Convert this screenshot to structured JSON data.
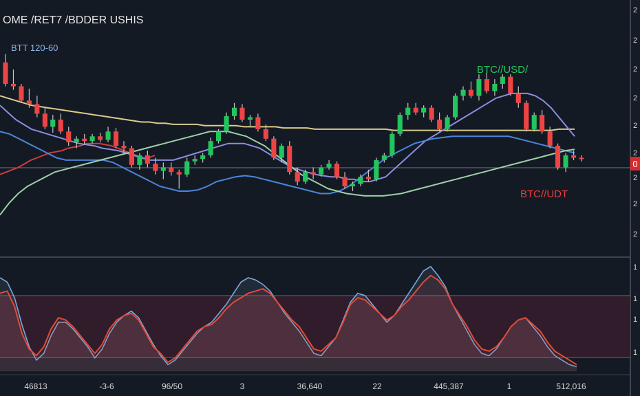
{
  "header": {
    "title": "OME /RET7 /BDDER USHIS",
    "subtitle": "BTT 120-60"
  },
  "annotations": {
    "btc_usd": "BTC//USD/",
    "btc_udt": "BTC//UDT"
  },
  "price_tag": "0",
  "colors": {
    "background": "#141a24",
    "bull": "#22c55e",
    "bear": "#ef4444",
    "ma_yellow": "#d8cc8a",
    "ma_red": "#d33a3a",
    "ma_blue": "#4a86d8",
    "ma_lavender": "#8a8ee0",
    "ma_green": "#9ed0a8",
    "osc_red": "#e04a3a",
    "osc_blue": "#7aa8d8",
    "axis_text": "#d6d6d6"
  },
  "x_axis_labels": [
    "46813",
    "-3-6",
    "96/50",
    "3",
    "36,640",
    "22",
    "445,387",
    "1",
    "512,016"
  ],
  "y_axis_ticks": [
    "2",
    "2",
    "2",
    "2",
    "2",
    "2",
    "2",
    "2",
    "2",
    "2",
    "2",
    "2"
  ],
  "lower_axis_ticks": [
    "1",
    "1",
    "1",
    "1"
  ],
  "chart_data": {
    "type": "candlestick",
    "candles": [
      {
        "o": 138,
        "h": 145,
        "l": 118,
        "c": 120
      },
      {
        "o": 120,
        "h": 132,
        "l": 115,
        "c": 118
      },
      {
        "o": 118,
        "h": 120,
        "l": 104,
        "c": 106
      },
      {
        "o": 106,
        "h": 116,
        "l": 100,
        "c": 103
      },
      {
        "o": 103,
        "h": 110,
        "l": 92,
        "c": 95
      },
      {
        "o": 95,
        "h": 100,
        "l": 82,
        "c": 84
      },
      {
        "o": 84,
        "h": 94,
        "l": 79,
        "c": 90
      },
      {
        "o": 90,
        "h": 95,
        "l": 78,
        "c": 80
      },
      {
        "o": 80,
        "h": 84,
        "l": 68,
        "c": 71
      },
      {
        "o": 71,
        "h": 76,
        "l": 66,
        "c": 74
      },
      {
        "o": 74,
        "h": 78,
        "l": 69,
        "c": 72
      },
      {
        "o": 72,
        "h": 78,
        "l": 70,
        "c": 76
      },
      {
        "o": 76,
        "h": 79,
        "l": 71,
        "c": 73
      },
      {
        "o": 73,
        "h": 84,
        "l": 71,
        "c": 80
      },
      {
        "o": 80,
        "h": 83,
        "l": 66,
        "c": 68
      },
      {
        "o": 68,
        "h": 72,
        "l": 62,
        "c": 66
      },
      {
        "o": 66,
        "h": 68,
        "l": 50,
        "c": 52
      },
      {
        "o": 52,
        "h": 62,
        "l": 48,
        "c": 60
      },
      {
        "o": 60,
        "h": 64,
        "l": 50,
        "c": 53
      },
      {
        "o": 53,
        "h": 58,
        "l": 44,
        "c": 47
      },
      {
        "o": 47,
        "h": 54,
        "l": 40,
        "c": 50
      },
      {
        "o": 50,
        "h": 54,
        "l": 43,
        "c": 46
      },
      {
        "o": 46,
        "h": 48,
        "l": 32,
        "c": 44
      },
      {
        "o": 44,
        "h": 58,
        "l": 42,
        "c": 55
      },
      {
        "o": 55,
        "h": 60,
        "l": 52,
        "c": 57
      },
      {
        "o": 57,
        "h": 62,
        "l": 54,
        "c": 60
      },
      {
        "o": 60,
        "h": 75,
        "l": 58,
        "c": 72
      },
      {
        "o": 72,
        "h": 82,
        "l": 70,
        "c": 80
      },
      {
        "o": 80,
        "h": 96,
        "l": 78,
        "c": 93
      },
      {
        "o": 93,
        "h": 104,
        "l": 90,
        "c": 100
      },
      {
        "o": 100,
        "h": 103,
        "l": 88,
        "c": 90
      },
      {
        "o": 90,
        "h": 94,
        "l": 84,
        "c": 92
      },
      {
        "o": 92,
        "h": 95,
        "l": 80,
        "c": 82
      },
      {
        "o": 82,
        "h": 86,
        "l": 72,
        "c": 74
      },
      {
        "o": 74,
        "h": 76,
        "l": 56,
        "c": 58
      },
      {
        "o": 58,
        "h": 70,
        "l": 54,
        "c": 68
      },
      {
        "o": 68,
        "h": 72,
        "l": 44,
        "c": 46
      },
      {
        "o": 46,
        "h": 50,
        "l": 35,
        "c": 38
      },
      {
        "o": 38,
        "h": 48,
        "l": 36,
        "c": 46
      },
      {
        "o": 46,
        "h": 50,
        "l": 40,
        "c": 44
      },
      {
        "o": 44,
        "h": 52,
        "l": 42,
        "c": 50
      },
      {
        "o": 50,
        "h": 56,
        "l": 48,
        "c": 53
      },
      {
        "o": 53,
        "h": 55,
        "l": 40,
        "c": 42
      },
      {
        "o": 42,
        "h": 46,
        "l": 32,
        "c": 34
      },
      {
        "o": 34,
        "h": 38,
        "l": 30,
        "c": 36
      },
      {
        "o": 36,
        "h": 44,
        "l": 34,
        "c": 42
      },
      {
        "o": 42,
        "h": 48,
        "l": 38,
        "c": 40
      },
      {
        "o": 40,
        "h": 58,
        "l": 38,
        "c": 56
      },
      {
        "o": 56,
        "h": 62,
        "l": 54,
        "c": 60
      },
      {
        "o": 60,
        "h": 80,
        "l": 58,
        "c": 78
      },
      {
        "o": 78,
        "h": 96,
        "l": 76,
        "c": 94
      },
      {
        "o": 94,
        "h": 104,
        "l": 90,
        "c": 100
      },
      {
        "o": 100,
        "h": 104,
        "l": 94,
        "c": 96
      },
      {
        "o": 96,
        "h": 102,
        "l": 92,
        "c": 100
      },
      {
        "o": 100,
        "h": 102,
        "l": 88,
        "c": 90
      },
      {
        "o": 90,
        "h": 96,
        "l": 80,
        "c": 82
      },
      {
        "o": 82,
        "h": 94,
        "l": 80,
        "c": 92
      },
      {
        "o": 92,
        "h": 112,
        "l": 90,
        "c": 110
      },
      {
        "o": 110,
        "h": 118,
        "l": 106,
        "c": 115
      },
      {
        "o": 115,
        "h": 122,
        "l": 108,
        "c": 110
      },
      {
        "o": 110,
        "h": 128,
        "l": 106,
        "c": 124
      },
      {
        "o": 124,
        "h": 130,
        "l": 112,
        "c": 114
      },
      {
        "o": 114,
        "h": 124,
        "l": 110,
        "c": 120
      },
      {
        "o": 120,
        "h": 128,
        "l": 116,
        "c": 126
      },
      {
        "o": 126,
        "h": 128,
        "l": 110,
        "c": 112
      },
      {
        "o": 112,
        "h": 118,
        "l": 100,
        "c": 104
      },
      {
        "o": 104,
        "h": 106,
        "l": 80,
        "c": 82
      },
      {
        "o": 82,
        "h": 96,
        "l": 80,
        "c": 94
      },
      {
        "o": 94,
        "h": 98,
        "l": 78,
        "c": 80
      },
      {
        "o": 80,
        "h": 84,
        "l": 66,
        "c": 68
      },
      {
        "o": 68,
        "h": 70,
        "l": 48,
        "c": 50
      },
      {
        "o": 50,
        "h": 62,
        "l": 46,
        "c": 60
      },
      {
        "o": 60,
        "h": 64,
        "l": 56,
        "c": 58
      },
      {
        "o": 58,
        "h": 60,
        "l": 55,
        "c": 57
      }
    ],
    "moving_averages": [
      {
        "color": "#d8cc8a",
        "values": [
          110,
          108,
          106,
          104,
          102,
          101,
          100,
          99,
          98,
          97,
          96,
          95,
          94,
          93,
          92,
          91,
          90,
          89,
          88,
          88,
          87,
          87,
          86,
          86,
          86,
          86,
          85,
          85,
          85,
          85,
          85,
          84,
          84,
          84,
          84,
          84,
          83,
          83,
          83,
          83,
          82,
          82,
          82,
          82,
          82,
          82,
          82,
          82,
          82,
          82,
          81,
          81,
          81,
          81,
          81,
          81,
          81,
          81,
          81,
          81,
          81,
          81,
          81,
          81,
          81,
          81,
          81,
          81,
          81,
          81,
          81,
          82,
          82,
          82
        ]
      },
      {
        "color": "#d33a3a",
        "values": [
          44,
          46,
          48,
          50,
          53,
          56,
          58,
          60,
          62,
          63,
          64,
          66,
          67,
          68,
          70,
          70,
          70,
          69,
          68,
          66,
          64,
          62,
          60,
          58,
          58,
          60
        ]
      },
      {
        "color": "#8a8ee0",
        "values": [
          102,
          96,
          90,
          86,
          82,
          80,
          78,
          76,
          74,
          72,
          70,
          69,
          68,
          66,
          65,
          64,
          62,
          60,
          58,
          56,
          56,
          56,
          56,
          58,
          60,
          62,
          64,
          66,
          68,
          70,
          70,
          70,
          68,
          66,
          62,
          58,
          54,
          50,
          48,
          46,
          44,
          43,
          42,
          42,
          40,
          40,
          38,
          38,
          40,
          42,
          48,
          54,
          60,
          66,
          72,
          76,
          80,
          84,
          88,
          92,
          96,
          100,
          104,
          108,
          110,
          112,
          112,
          112,
          110,
          106,
          100,
          92,
          84,
          76
        ]
      },
      {
        "color": "#4a86d8",
        "values": [
          80,
          78,
          74,
          70,
          66,
          62,
          58,
          56,
          56,
          56,
          56,
          56,
          54,
          50,
          46,
          42,
          38,
          34,
          32,
          30,
          30,
          31,
          34,
          38,
          40,
          42,
          43,
          42,
          40,
          38,
          36,
          34,
          32,
          30,
          28,
          28,
          30,
          34,
          40,
          46,
          52,
          58,
          62,
          66,
          70,
          72,
          74,
          75,
          76,
          76,
          76,
          76,
          76,
          76,
          76,
          74,
          72,
          70,
          68,
          66,
          64,
          62
        ]
      },
      {
        "color": "#9ed0a8",
        "values": [
          10,
          20,
          28,
          34,
          38,
          42,
          46,
          48,
          50,
          52,
          54,
          56,
          58,
          60,
          62,
          64,
          66,
          68,
          70,
          72,
          74,
          76,
          78,
          80,
          80,
          80,
          78,
          76,
          72,
          68,
          62,
          56,
          50,
          44,
          40,
          36,
          32,
          30,
          28,
          27,
          26,
          26,
          26,
          27,
          28,
          30,
          32,
          34,
          36,
          38,
          40,
          42,
          44,
          46,
          48,
          50,
          52,
          54,
          56,
          58,
          60,
          62,
          64,
          65
        ]
      }
    ],
    "oscillator": {
      "red": [
        70,
        72,
        58,
        34,
        20,
        14,
        22,
        38,
        48,
        46,
        40,
        32,
        24,
        16,
        24,
        38,
        46,
        50,
        52,
        46,
        34,
        22,
        16,
        8,
        12,
        20,
        28,
        36,
        40,
        42,
        48,
        56,
        62,
        66,
        70,
        72,
        74,
        70,
        62,
        54,
        46,
        40,
        30,
        20,
        18,
        24,
        30,
        44,
        60,
        66,
        64,
        58,
        52,
        46,
        50,
        58,
        64,
        72,
        80,
        86,
        82,
        74,
        60,
        50,
        40,
        28,
        20,
        18,
        22,
        30,
        40,
        46,
        48,
        42,
        36,
        26,
        18,
        14,
        10,
        6
      ],
      "blue": [
        84,
        80,
        66,
        42,
        22,
        10,
        16,
        32,
        44,
        44,
        38,
        30,
        22,
        12,
        20,
        34,
        44,
        50,
        54,
        48,
        36,
        24,
        14,
        6,
        10,
        18,
        26,
        34,
        40,
        44,
        52,
        60,
        70,
        80,
        84,
        82,
        78,
        72,
        62,
        52,
        44,
        36,
        26,
        16,
        14,
        22,
        30,
        46,
        62,
        70,
        68,
        60,
        52,
        44,
        50,
        60,
        70,
        80,
        90,
        94,
        86,
        76,
        60,
        48,
        36,
        24,
        16,
        14,
        20,
        30,
        40,
        46,
        48,
        40,
        32,
        22,
        14,
        10,
        6,
        4
      ]
    }
  }
}
